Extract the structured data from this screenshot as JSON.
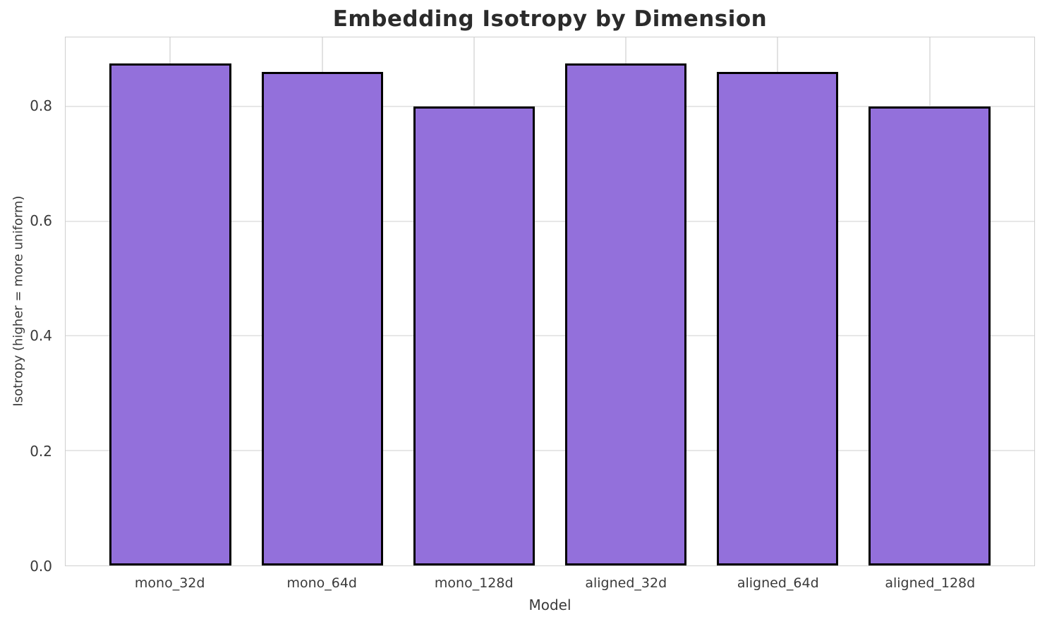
{
  "chart_data": {
    "type": "bar",
    "title": "Embedding Isotropy by Dimension",
    "xlabel": "Model",
    "ylabel": "Isotropy (higher = more uniform)",
    "categories": [
      "mono_32d",
      "mono_64d",
      "mono_128d",
      "aligned_32d",
      "aligned_64d",
      "aligned_128d"
    ],
    "values": [
      0.875,
      0.86,
      0.8,
      0.875,
      0.86,
      0.8
    ],
    "ylim": [
      0,
      0.92
    ],
    "yticks": [
      0.0,
      0.2,
      0.4,
      0.6,
      0.8
    ],
    "ytick_labels": [
      "0.0",
      "0.2",
      "0.4",
      "0.6",
      "0.8"
    ],
    "xlim_pad_categories": [
      -0.69,
      5.69
    ],
    "bar_width_categories": 0.8,
    "grid": true,
    "legend": "none",
    "colors": {
      "bar_fill": "#9370DB",
      "bar_edge": "#000000",
      "grid_h": "#e7e7e7",
      "grid_v": "#e2e2e2",
      "spine": "#cfcfcf",
      "title_text": "#2b2b2b",
      "tick_text": "#3a3a3a",
      "background": "#ffffff"
    }
  }
}
